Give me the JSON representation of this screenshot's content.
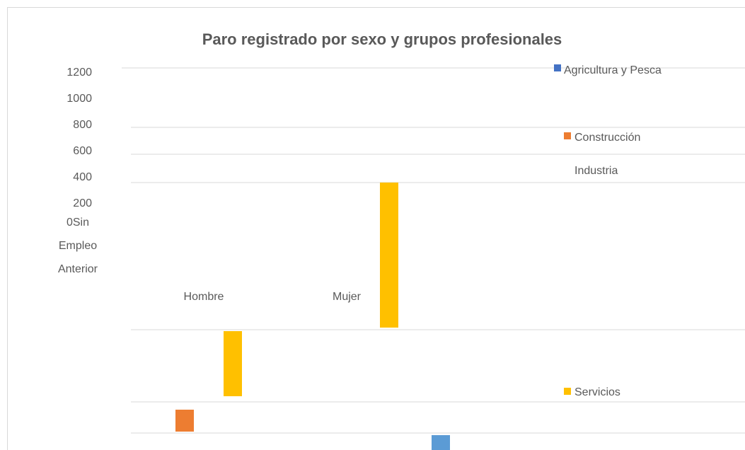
{
  "title": "Paro registrado por sexo y grupos profesionales",
  "axis_labels": [
    "1200",
    "1000",
    "800",
    "600",
    "400",
    "200",
    "0Sin",
    "Empleo",
    "Anterior"
  ],
  "categories": [
    "Hombre",
    "Mujer"
  ],
  "legend": [
    "Agricultura y Pesca",
    "Construcción",
    "Industria",
    "Servicios"
  ]
}
